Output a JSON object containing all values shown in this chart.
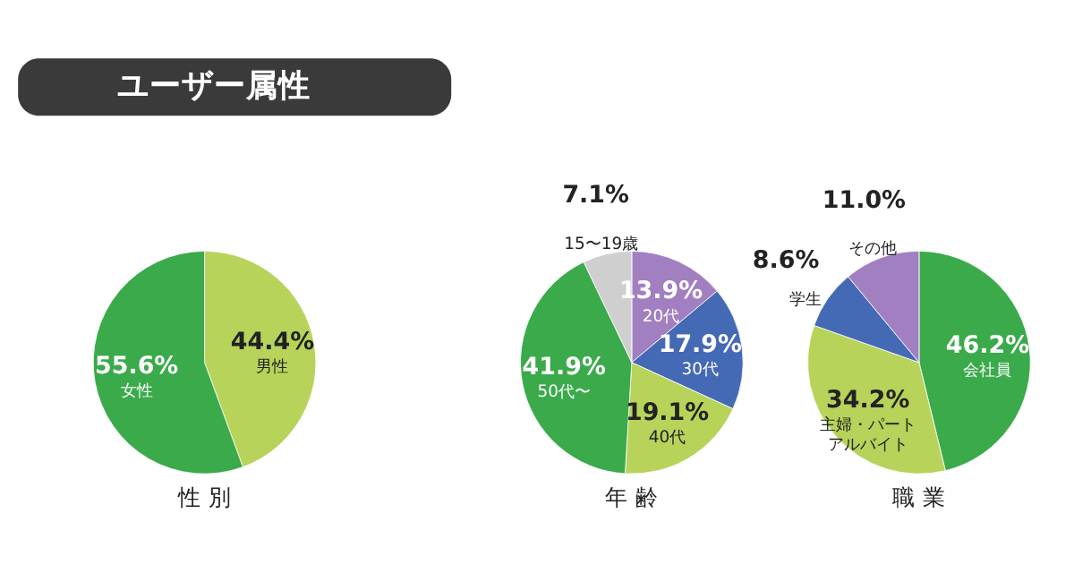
{
  "chart_data": [
    {
      "type": "pie",
      "title": "性 別",
      "annotations": [
        "ユーザー属性"
      ],
      "categories": [
        "男性",
        "女性"
      ],
      "values": [
        44.4,
        55.6
      ],
      "value_labels": [
        "44.4%",
        "55.6%"
      ],
      "colors": [
        "#b7d35a",
        "#3aaa4a"
      ]
    },
    {
      "type": "pie",
      "title": "年 齢",
      "categories": [
        "20代",
        "30代",
        "40代",
        "50代〜",
        "15〜19歳"
      ],
      "values": [
        13.9,
        17.9,
        19.1,
        41.9,
        7.1
      ],
      "value_labels": [
        "13.9%",
        "17.9%",
        "19.1%",
        "41.9%",
        "7.1%"
      ],
      "colors": [
        "#a27fc0",
        "#4469b5",
        "#b7d35a",
        "#3aaa4a",
        "#cfcfcf"
      ]
    },
    {
      "type": "pie",
      "title": "職 業",
      "categories": [
        "会社員",
        "主婦・パートアルバイト",
        "学生",
        "その他"
      ],
      "values": [
        46.2,
        34.2,
        8.6,
        11.0
      ],
      "value_labels": [
        "46.2%",
        "34.2%",
        "8.6%",
        "11.0%"
      ],
      "colors": [
        "#3aaa4a",
        "#b7d35a",
        "#4469b5",
        "#a27fc0"
      ]
    }
  ]
}
